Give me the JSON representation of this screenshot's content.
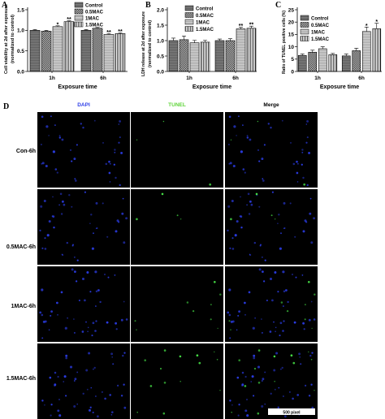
{
  "series_styles": {
    "Control": {
      "fill": "#7d7d7d",
      "pattern": "horizontal-lines",
      "ink": "#4a4a4a"
    },
    "0.5MAC": {
      "fill": "#ffffff",
      "pattern": "checker",
      "ink": "#000000"
    },
    "1MAC": {
      "fill": "#d2d2d2",
      "pattern": "horizontal-lines",
      "ink": "#8c8c8c"
    },
    "1.5MAC": {
      "fill": "#ffffff",
      "pattern": "vertical-lines",
      "ink": "#000000"
    }
  },
  "chart_data": [
    {
      "label": "A",
      "type": "bar",
      "categories": [
        "1h",
        "6h"
      ],
      "xlabel": "Exposure time",
      "ylabel": [
        "Cell viability at 2d after exposure",
        "(normalized to control)"
      ],
      "ylim": [
        0,
        1.5
      ],
      "yticks": [
        0,
        0.5,
        1.0,
        1.5
      ],
      "ytick_labels": [
        "0.0",
        "0.5",
        "1.0",
        "1.5"
      ],
      "grid": false,
      "legend": "top-right",
      "series": [
        {
          "name": "Control",
          "values": [
            1.0,
            1.0
          ],
          "errors": [
            0.02,
            0.02
          ]
        },
        {
          "name": "0.5MAC",
          "values": [
            0.98,
            1.05
          ],
          "errors": [
            0.02,
            0.02
          ]
        },
        {
          "name": "1MAC",
          "values": [
            1.09,
            0.9
          ],
          "errors": [
            0.02,
            0.02
          ]
        },
        {
          "name": "1.5MAC",
          "values": [
            1.21,
            0.92
          ],
          "errors": [
            0.02,
            0.02
          ]
        }
      ],
      "annotations": [
        {
          "category": "1h",
          "series": "1MAC",
          "text": "*"
        },
        {
          "category": "1h",
          "series": "1.5MAC",
          "text": "**"
        },
        {
          "category": "6h",
          "series": "1MAC",
          "text": "**"
        },
        {
          "category": "6h",
          "series": "1.5MAC",
          "text": "**"
        }
      ]
    },
    {
      "label": "B",
      "type": "bar",
      "categories": [
        "1h",
        "6h"
      ],
      "xlabel": "Exposure time",
      "ylabel": [
        "LDH release at 2d after exposure",
        "(normalized to control)"
      ],
      "ylim": [
        0,
        2.0
      ],
      "yticks": [
        0,
        0.5,
        1.0,
        1.5,
        2.0
      ],
      "ytick_labels": [
        "0.0",
        "0.5",
        "1.0",
        "1.5",
        "2.0"
      ],
      "grid": false,
      "legend": "top",
      "series": [
        {
          "name": "Control",
          "values": [
            1.0,
            1.0
          ],
          "errors": [
            0.08,
            0.05
          ]
        },
        {
          "name": "0.5MAC",
          "values": [
            1.03,
            1.0
          ],
          "errors": [
            0.12,
            0.06
          ]
        },
        {
          "name": "1MAC",
          "values": [
            0.93,
            1.38
          ],
          "errors": [
            0.08,
            0.05
          ]
        },
        {
          "name": "1.5MAC",
          "values": [
            0.95,
            1.4
          ],
          "errors": [
            0.06,
            0.07
          ]
        }
      ],
      "annotations": [
        {
          "category": "6h",
          "series": "1MAC",
          "text": "**"
        },
        {
          "category": "6h",
          "series": "1.5MAC",
          "text": "**"
        }
      ]
    },
    {
      "label": "C",
      "type": "bar",
      "categories": [
        "1h",
        "6h"
      ],
      "xlabel": "Exposure time",
      "ylabel": [
        "Ratio of TUNEL positive cells (%)"
      ],
      "ylim": [
        0,
        25
      ],
      "yticks": [
        0,
        5,
        10,
        15,
        20,
        25
      ],
      "ytick_labels": [
        "0",
        "5",
        "10",
        "15",
        "20",
        "25"
      ],
      "grid": false,
      "legend": "top-left",
      "series": [
        {
          "name": "Control",
          "values": [
            6.5,
            6.3
          ],
          "errors": [
            0.6,
            0.8
          ]
        },
        {
          "name": "0.5MAC",
          "values": [
            7.8,
            8.4
          ],
          "errors": [
            0.8,
            1.0
          ]
        },
        {
          "name": "1MAC",
          "values": [
            9.2,
            16.2
          ],
          "errors": [
            0.8,
            1.8
          ]
        },
        {
          "name": "1.5MAC",
          "values": [
            6.8,
            17.3
          ],
          "errors": [
            0.5,
            2.2
          ]
        }
      ],
      "annotations": [
        {
          "category": "6h",
          "series": "1MAC",
          "text": "*"
        },
        {
          "category": "6h",
          "series": "1.5MAC",
          "text": "*"
        }
      ]
    }
  ],
  "microscopy": {
    "label": "D",
    "columns": [
      {
        "name": "DAPI",
        "color": "#2f3fe8"
      },
      {
        "name": "TUNEL",
        "color": "#5fd43a"
      },
      {
        "name": "Merge",
        "color": "#000000"
      }
    ],
    "rows": [
      "Con-6h",
      "0.5MAC-6h",
      "1MAC-6h",
      "1.5MAC-6h"
    ],
    "scale_bar": "500 pixel",
    "stain_colors": {
      "dapi": "#2a3be0",
      "tunel": "#46e046"
    }
  }
}
